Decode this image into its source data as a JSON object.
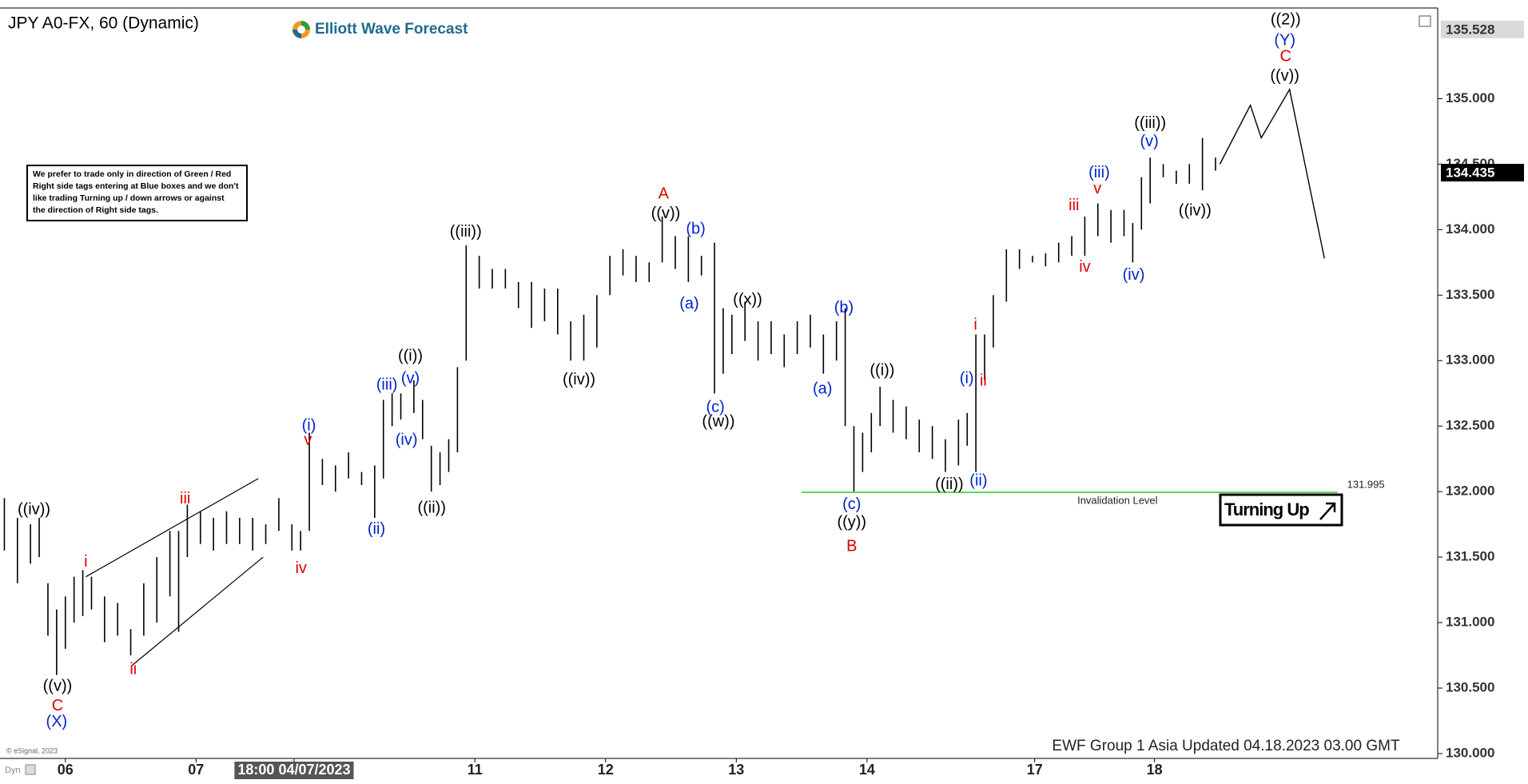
{
  "chart_data": {
    "type": "ohlc",
    "title": "JPY A0-FX, 60 (Dynamic)",
    "color": "#000000",
    "x": [
      1,
      4,
      7,
      9,
      11,
      13,
      15,
      17,
      19,
      21,
      24,
      27,
      30,
      33,
      36,
      39,
      41,
      43,
      46,
      49,
      52,
      55,
      58,
      61,
      64,
      67,
      69,
      71,
      74,
      77,
      80,
      83,
      86,
      88,
      90,
      92,
      95,
      97,
      99,
      101,
      103,
      105,
      107,
      110,
      113,
      116,
      119,
      122,
      125,
      128,
      131,
      134,
      137,
      140,
      143,
      146,
      149,
      152,
      155,
      158,
      161,
      164,
      166,
      168,
      171,
      174,
      177,
      180,
      183,
      186,
      189,
      192,
      194,
      196,
      198,
      200,
      202,
      205,
      208,
      211,
      214,
      217,
      220,
      222,
      224,
      226,
      228,
      231,
      234,
      237,
      240,
      243,
      246,
      249,
      252,
      255,
      258,
      260,
      262,
      264,
      267,
      270,
      273,
      276,
      279
    ],
    "high": [
      131.95,
      131.8,
      131.75,
      131.8,
      131.3,
      131.1,
      131.2,
      131.35,
      131.4,
      131.35,
      131.2,
      131.15,
      130.95,
      131.3,
      131.5,
      131.7,
      131.7,
      131.9,
      131.85,
      131.8,
      131.85,
      131.8,
      131.8,
      131.75,
      131.95,
      131.75,
      131.7,
      132.45,
      132.25,
      132.2,
      132.3,
      132.15,
      132.2,
      132.7,
      132.75,
      132.75,
      132.85,
      132.7,
      132.35,
      132.3,
      132.4,
      132.95,
      133.88,
      133.8,
      133.7,
      133.7,
      133.6,
      133.6,
      133.55,
      133.55,
      133.3,
      133.35,
      133.5,
      133.8,
      133.85,
      133.8,
      133.75,
      134.1,
      133.95,
      133.95,
      133.8,
      133.9,
      133.4,
      133.35,
      133.45,
      133.3,
      133.3,
      133.2,
      133.3,
      133.35,
      133.2,
      133.3,
      133.4,
      132.5,
      132.45,
      132.6,
      132.8,
      132.7,
      132.65,
      132.55,
      132.5,
      132.4,
      132.55,
      132.6,
      133.2,
      133.2,
      133.5,
      133.85,
      133.85,
      133.8,
      133.82,
      133.9,
      133.95,
      134.1,
      134.2,
      134.15,
      134.15,
      134.05,
      134.4,
      134.55,
      134.5,
      134.45,
      134.5,
      134.7,
      134.55
    ],
    "low": [
      131.55,
      131.3,
      131.45,
      131.5,
      130.9,
      130.6,
      130.8,
      131.0,
      131.05,
      131.1,
      130.85,
      130.9,
      130.75,
      130.9,
      131.0,
      131.2,
      130.93,
      131.5,
      131.6,
      131.55,
      131.6,
      131.6,
      131.55,
      131.6,
      131.7,
      131.55,
      131.55,
      131.7,
      132.05,
      132.0,
      132.1,
      132.05,
      131.8,
      132.1,
      132.5,
      132.55,
      132.6,
      132.4,
      132.0,
      132.05,
      132.15,
      132.3,
      133.0,
      133.55,
      133.55,
      133.55,
      133.4,
      133.25,
      133.3,
      133.2,
      133.0,
      133.0,
      133.1,
      133.5,
      133.65,
      133.6,
      133.6,
      133.75,
      133.7,
      133.6,
      133.65,
      132.75,
      132.9,
      133.05,
      133.15,
      133.0,
      133.05,
      132.95,
      133.05,
      133.1,
      132.9,
      133.0,
      132.5,
      132.0,
      132.15,
      132.3,
      132.5,
      132.45,
      132.4,
      132.3,
      132.25,
      132.15,
      132.2,
      132.35,
      132.15,
      132.85,
      133.1,
      133.45,
      133.7,
      133.75,
      133.72,
      133.75,
      133.8,
      133.8,
      133.95,
      133.9,
      133.95,
      133.75,
      134.0,
      134.2,
      134.4,
      134.35,
      134.35,
      134.3,
      134.45
    ],
    "xlim": [
      0,
      330
    ],
    "ylim": [
      129.963,
      135.692
    ],
    "xticks": [
      {
        "value": 15,
        "label": "06"
      },
      {
        "value": 45,
        "label": "07"
      },
      {
        "value": 67.5,
        "label": "18:00 04/07/2023",
        "highlight": true
      },
      {
        "value": 109,
        "label": "11"
      },
      {
        "value": 139,
        "label": "12"
      },
      {
        "value": 169,
        "label": "13"
      },
      {
        "value": 199,
        "label": "14"
      },
      {
        "value": 237.5,
        "label": "17"
      },
      {
        "value": 265,
        "label": "18"
      }
    ],
    "yticks": [
      {
        "value": 130,
        "label": "130.000"
      },
      {
        "value": 130.5,
        "label": "130.500"
      },
      {
        "value": 131,
        "label": "131.000"
      },
      {
        "value": 131.5,
        "label": "131.500"
      },
      {
        "value": 132,
        "label": "132.000"
      },
      {
        "value": 132.5,
        "label": "132.500"
      },
      {
        "value": 133,
        "label": "133.000"
      },
      {
        "value": 133.5,
        "label": "133.500"
      },
      {
        "value": 134,
        "label": "134.000"
      },
      {
        "value": 134.5,
        "label": "134.500"
      },
      {
        "value": 135,
        "label": "135.000"
      }
    ],
    "price_tags": [
      {
        "value": 135.528,
        "background": "#d9d9d9",
        "color": "#333333"
      },
      {
        "value": 134.435,
        "background": "#000000",
        "color": "#ffffff"
      }
    ],
    "projection": {
      "x": [
        280,
        287,
        289.5,
        296,
        304
      ],
      "y": [
        134.5,
        134.95,
        134.7,
        135.07,
        133.78
      ],
      "color": "#000000"
    },
    "channel": [
      {
        "x": [
          19.7,
          59.3
        ],
        "y": [
          131.35,
          132.1
        ]
      },
      {
        "x": [
          30.2,
          60.4
        ],
        "y": [
          130.67,
          131.5
        ]
      }
    ],
    "invalidation": {
      "value": 131.995,
      "x": [
        184,
        307
      ],
      "label": "Invalidation Level",
      "color": "#55dd55"
    },
    "annotations": [
      {
        "color": "#000000",
        "labels": [
          {
            "text": "((iv))",
            "x": 7.8,
            "y": 131.86
          },
          {
            "text": "((v))",
            "x": 13.2,
            "y": 130.51
          },
          {
            "text": "((i))",
            "x": 94.2,
            "y": 133.03
          },
          {
            "text": "((ii))",
            "x": 99.1,
            "y": 131.87
          },
          {
            "text": "((iii))",
            "x": 106.9,
            "y": 133.98
          },
          {
            "text": "((iv))",
            "x": 132.9,
            "y": 132.85
          },
          {
            "text": "((v))",
            "x": 152.8,
            "y": 134.12
          },
          {
            "text": "((x))",
            "x": 171.6,
            "y": 133.46
          },
          {
            "text": "((w))",
            "x": 164.9,
            "y": 132.53
          },
          {
            "text": "((y))",
            "x": 195.5,
            "y": 131.76
          },
          {
            "text": "((i))",
            "x": 202.5,
            "y": 132.92
          },
          {
            "text": "((ii))",
            "x": 217.9,
            "y": 132.05
          },
          {
            "text": "((iii))",
            "x": 264,
            "y": 134.81
          },
          {
            "text": "((iv))",
            "x": 274.3,
            "y": 134.14
          },
          {
            "text": "((v))",
            "x": 294.9,
            "y": 135.17
          },
          {
            "text": "((2))",
            "x": 295.1,
            "y": 135.6
          }
        ]
      },
      {
        "color": "#dd0000",
        "labels": [
          {
            "text": "C",
            "x": 13.2,
            "y": 130.36
          },
          {
            "text": "i",
            "x": 19.7,
            "y": 131.46
          },
          {
            "text": "ii",
            "x": 30.6,
            "y": 130.64
          },
          {
            "text": "iii",
            "x": 42.5,
            "y": 131.94
          },
          {
            "text": "v",
            "x": 70.7,
            "y": 132.39
          },
          {
            "text": "iv",
            "x": 69.1,
            "y": 131.41
          },
          {
            "text": "A",
            "x": 152.3,
            "y": 134.27
          },
          {
            "text": "B",
            "x": 195.5,
            "y": 131.58
          },
          {
            "text": "i",
            "x": 223.9,
            "y": 133.27
          },
          {
            "text": "ii",
            "x": 225.7,
            "y": 132.84
          },
          {
            "text": "iii",
            "x": 246.5,
            "y": 134.18
          },
          {
            "text": "v",
            "x": 251.9,
            "y": 134.31
          },
          {
            "text": "iv",
            "x": 249,
            "y": 133.71
          },
          {
            "text": "C",
            "x": 295.1,
            "y": 135.32
          }
        ]
      },
      {
        "color": "#0022cc",
        "labels": [
          {
            "text": "(X)",
            "x": 13,
            "y": 130.24
          },
          {
            "text": "(i)",
            "x": 70.9,
            "y": 132.5
          },
          {
            "text": "(ii)",
            "x": 86.4,
            "y": 131.71
          },
          {
            "text": "(iii)",
            "x": 88.8,
            "y": 132.81
          },
          {
            "text": "(v)",
            "x": 94.2,
            "y": 132.86
          },
          {
            "text": "(iv)",
            "x": 93.3,
            "y": 132.39
          },
          {
            "text": "(b)",
            "x": 159.7,
            "y": 134.0
          },
          {
            "text": "(a)",
            "x": 158.2,
            "y": 133.43
          },
          {
            "text": "(c)",
            "x": 164.2,
            "y": 132.64
          },
          {
            "text": "(b)",
            "x": 193.7,
            "y": 133.4
          },
          {
            "text": "(a)",
            "x": 188.8,
            "y": 132.78
          },
          {
            "text": "(c)",
            "x": 195.5,
            "y": 131.9
          },
          {
            "text": "(i)",
            "x": 221.9,
            "y": 132.86
          },
          {
            "text": "(ii)",
            "x": 224.6,
            "y": 132.08
          },
          {
            "text": "(iii)",
            "x": 252.3,
            "y": 134.43
          },
          {
            "text": "(iv)",
            "x": 260.2,
            "y": 133.65
          },
          {
            "text": "(v)",
            "x": 263.8,
            "y": 134.67
          },
          {
            "text": "(Y)",
            "x": 294.9,
            "y": 135.44
          }
        ]
      }
    ]
  },
  "logo": "Elliott Wave Forecast",
  "note": [
    "We prefer to trade only in direction of Green / Red",
    "Right side tags entering at Blue boxes and we don't",
    "like trading Turning up / down arrows or against",
    "the direction of Right side tags."
  ],
  "signal": "Turning Up",
  "footer": "EWF Group 1 Asia Updated 04.18.2023 03.00 GMT",
  "copyright": "© eSignal, 2023",
  "corner": "Dyn"
}
